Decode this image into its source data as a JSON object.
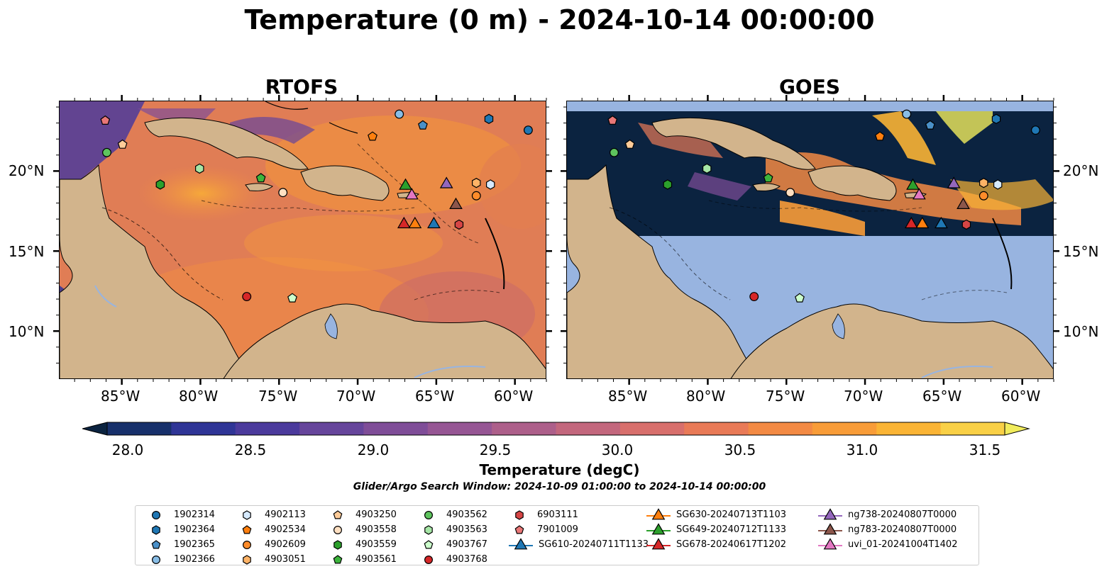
{
  "title": "Temperature (0 m) - 2024-10-14 00:00:00",
  "panels": [
    {
      "title": "RTOFS"
    },
    {
      "title": "GOES"
    }
  ],
  "lat_ticks": [
    "20°N",
    "15°N",
    "10°N"
  ],
  "lon_ticks": [
    "85°W",
    "80°W",
    "75°W",
    "70°W",
    "65°W",
    "60°W"
  ],
  "colorbar": {
    "label": "Temperature (degC)",
    "ticks": [
      "28.0",
      "28.5",
      "29.0",
      "29.5",
      "30.0",
      "30.5",
      "31.0",
      "31.5"
    ],
    "colors": [
      "#0b2340",
      "#17306b",
      "#2f3596",
      "#4b3a9c",
      "#66459b",
      "#7f4d98",
      "#965694",
      "#ad5f8a",
      "#c3677d",
      "#d86f6c",
      "#e97a57",
      "#f38a44",
      "#f89c38",
      "#fab435",
      "#f9d046",
      "#f1ec5c"
    ],
    "min": 28.0,
    "max": 31.5
  },
  "search_window": "Glider/Argo Search Window: 2024-10-09 01:00:00 to 2024-10-14 00:00:00",
  "colors": {
    "land": "#d2b48c",
    "ocean_warm": "#ef8a45",
    "ocean_mid": "#d9705f",
    "goes_cloud": "#0b2340",
    "goes_nodata": "#98b4e0"
  },
  "legend": [
    {
      "label": "1902314",
      "marker": "circle",
      "color": "#1f77b4"
    },
    {
      "label": "1902364",
      "marker": "hexagon",
      "color": "#1f77b4"
    },
    {
      "label": "1902365",
      "marker": "pentagon",
      "color": "#4a90c8"
    },
    {
      "label": "1902366",
      "marker": "circle",
      "color": "#88bde6"
    },
    {
      "label": "4902113",
      "marker": "hexagon",
      "color": "#d6eaff"
    },
    {
      "label": "4902534",
      "marker": "pentagon",
      "color": "#ff7f0e"
    },
    {
      "label": "4902609",
      "marker": "circle",
      "color": "#ff8c2a"
    },
    {
      "label": "4903051",
      "marker": "hexagon",
      "color": "#ffb366"
    },
    {
      "label": "4903250",
      "marker": "pentagon",
      "color": "#ffcc99"
    },
    {
      "label": "4903558",
      "marker": "circle",
      "color": "#ffe0c2"
    },
    {
      "label": "4903559",
      "marker": "hexagon",
      "color": "#2ca02c"
    },
    {
      "label": "4903561",
      "marker": "pentagon",
      "color": "#3cb43c"
    },
    {
      "label": "4903562",
      "marker": "circle",
      "color": "#5ec45e"
    },
    {
      "label": "4903563",
      "marker": "hexagon",
      "color": "#a6e6a6"
    },
    {
      "label": "4903767",
      "marker": "pentagon",
      "color": "#ccffcc"
    },
    {
      "label": "4903768",
      "marker": "circle",
      "color": "#d62728"
    },
    {
      "label": "6903111",
      "marker": "hexagon",
      "color": "#d64545"
    },
    {
      "label": "7901009",
      "marker": "pentagon",
      "color": "#e97777"
    },
    {
      "label": "SG610-20240711T1133",
      "marker": "triangle",
      "color": "#1f77b4"
    },
    {
      "label": "SG630-20240713T1103",
      "marker": "triangle",
      "color": "#ff7f0e"
    },
    {
      "label": "SG649-20240712T1133",
      "marker": "triangle",
      "color": "#2ca02c"
    },
    {
      "label": "SG678-20240617T1202",
      "marker": "triangle",
      "color": "#d62728"
    },
    {
      "label": "ng738-20240807T0000",
      "marker": "triangle",
      "color": "#9467bd"
    },
    {
      "label": "ng783-20240807T0000",
      "marker": "triangle",
      "color": "#8c564b"
    },
    {
      "label": "uvi_01-20241004T1402",
      "marker": "triangle",
      "color": "#e377c2"
    }
  ],
  "stations": [
    {
      "id": "1902314",
      "lon": -59.2,
      "lat": 22.6
    },
    {
      "id": "1902364",
      "lon": -61.7,
      "lat": 23.3
    },
    {
      "id": "1902365",
      "lon": -65.9,
      "lat": 22.9
    },
    {
      "id": "1902366",
      "lon": -67.4,
      "lat": 23.6
    },
    {
      "id": "4902113",
      "lon": -61.6,
      "lat": 19.2
    },
    {
      "id": "4902534",
      "lon": -69.1,
      "lat": 22.2
    },
    {
      "id": "4902609",
      "lon": -62.5,
      "lat": 18.5
    },
    {
      "id": "4903051",
      "lon": -62.5,
      "lat": 19.3
    },
    {
      "id": "4903250",
      "lon": -85.0,
      "lat": 21.7
    },
    {
      "id": "4903558",
      "lon": -74.8,
      "lat": 18.7
    },
    {
      "id": "4903559",
      "lon": -82.6,
      "lat": 19.2
    },
    {
      "id": "4903561",
      "lon": -76.2,
      "lat": 19.6
    },
    {
      "id": "4903562",
      "lon": -86.0,
      "lat": 21.2
    },
    {
      "id": "4903563",
      "lon": -80.1,
      "lat": 20.2
    },
    {
      "id": "4903767",
      "lon": -74.2,
      "lat": 12.1
    },
    {
      "id": "4903768",
      "lon": -77.1,
      "lat": 12.2
    },
    {
      "id": "6903111",
      "lon": -63.6,
      "lat": 16.7
    },
    {
      "id": "7901009",
      "lon": -86.1,
      "lat": 23.2
    },
    {
      "id": "SG610-20240711T1133",
      "lon": -65.2,
      "lat": 16.8
    },
    {
      "id": "SG630-20240713T1103",
      "lon": -66.4,
      "lat": 16.8
    },
    {
      "id": "SG649-20240712T1133",
      "lon": -67.0,
      "lat": 19.2
    },
    {
      "id": "SG678-20240617T1202",
      "lon": -67.1,
      "lat": 16.8
    },
    {
      "id": "ng738-20240807T0000",
      "lon": -64.4,
      "lat": 19.3
    },
    {
      "id": "ng783-20240807T0000",
      "lon": -63.8,
      "lat": 18.0
    },
    {
      "id": "uvi_01-20241004T1402",
      "lon": -66.6,
      "lat": 18.6
    }
  ]
}
